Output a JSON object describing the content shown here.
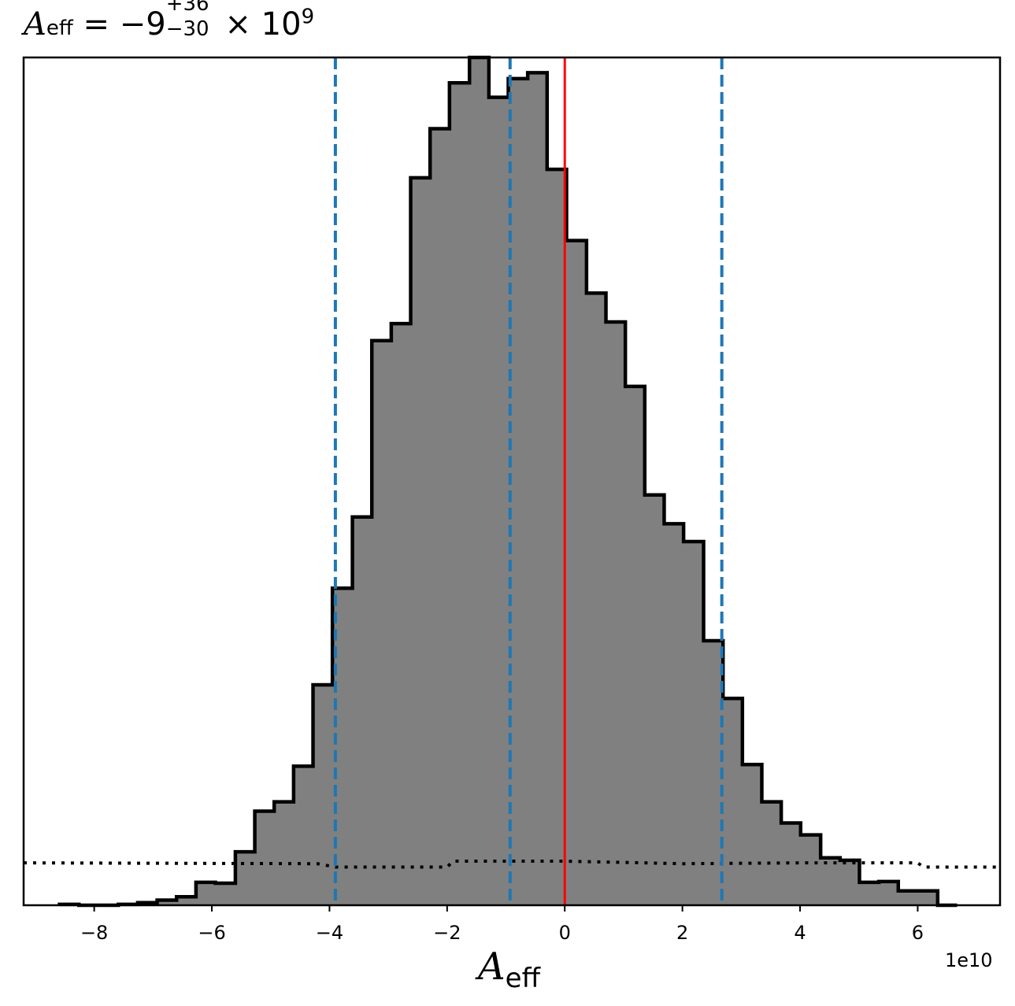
{
  "title": {
    "symbol": "A",
    "symbol_sub": "eff",
    "equals": " = −9",
    "upper": "+36",
    "lower": "−30",
    "times": " × 10",
    "exponent": "9"
  },
  "xlabel": {
    "symbol": "A",
    "sub": "eff"
  },
  "offset_text": "1e10",
  "colors": {
    "hist_fill": "#808080",
    "hist_edge": "#000000",
    "quantile_lines": "#1f77b4",
    "truth_line": "#ff0000",
    "prior_line": "#000000"
  },
  "chart_data": {
    "type": "histogram",
    "x_scale_label": "1e10",
    "xlim": [
      -9.2,
      7.4
    ],
    "ylim": [
      0,
      1.0
    ],
    "xticks": [
      -8,
      -6,
      -4,
      -2,
      0,
      2,
      4,
      6
    ],
    "xtick_labels": [
      "−8",
      "−6",
      "−4",
      "−2",
      "0",
      "2",
      "4",
      "6"
    ],
    "bin_edges": [
      -8.59,
      -8.26,
      -7.93,
      -7.59,
      -7.26,
      -6.93,
      -6.6,
      -6.27,
      -5.94,
      -5.6,
      -5.27,
      -4.94,
      -4.61,
      -4.28,
      -3.95,
      -3.61,
      -3.28,
      -2.95,
      -2.62,
      -2.29,
      -1.96,
      -1.62,
      -1.29,
      -0.96,
      -0.63,
      -0.3,
      0.03,
      0.37,
      0.7,
      1.03,
      1.36,
      1.69,
      2.02,
      2.36,
      2.69,
      3.02,
      3.35,
      3.68,
      4.01,
      4.35,
      4.68,
      5.01,
      5.34,
      5.67,
      6.0,
      6.34,
      6.67
    ],
    "counts": [
      0.001,
      0.0,
      0.0,
      0.001,
      0.003,
      0.006,
      0.01,
      0.027,
      0.026,
      0.063,
      0.111,
      0.122,
      0.164,
      0.26,
      0.374,
      0.458,
      0.666,
      0.686,
      0.858,
      0.916,
      0.97,
      1.0,
      0.953,
      0.975,
      0.982,
      0.868,
      0.784,
      0.722,
      0.688,
      0.612,
      0.484,
      0.45,
      0.429,
      0.312,
      0.244,
      0.166,
      0.122,
      0.097,
      0.083,
      0.056,
      0.053,
      0.027,
      0.028,
      0.017,
      0.017,
      0.0
    ],
    "quantile_lines": [
      -3.9,
      -0.93,
      2.67
    ],
    "truth_value": 0.0,
    "prior_curve": {
      "x": [
        -9.2,
        -4.2,
        -3.9,
        -2.0,
        -1.9,
        0.0,
        2.0,
        4.0,
        6.0,
        6.1,
        7.4
      ],
      "y": [
        0.05,
        0.049,
        0.045,
        0.045,
        0.052,
        0.052,
        0.049,
        0.05,
        0.05,
        0.045,
        0.045
      ]
    }
  }
}
